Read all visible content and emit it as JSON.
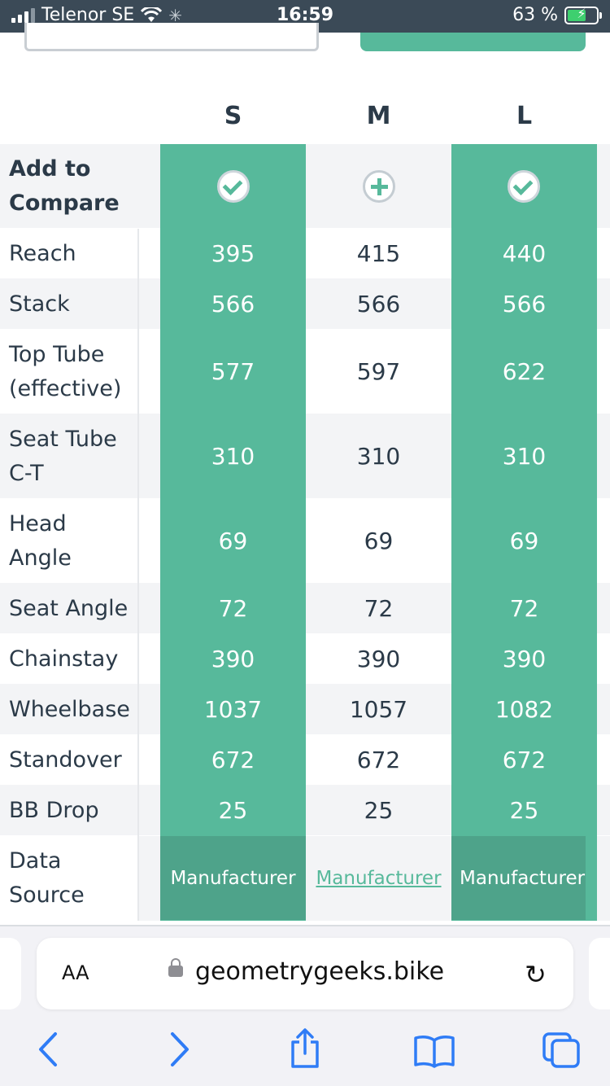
{
  "status_bar": {
    "carrier": "Telenor SE",
    "time": "16:59",
    "battery_percent": "63 %"
  },
  "table": {
    "sizes": [
      "S",
      "M",
      "L"
    ],
    "compare_label": "Add to Compare",
    "compare_states": [
      "selected",
      "add",
      "selected"
    ],
    "rows": [
      {
        "label": "Reach",
        "values": [
          "395",
          "415",
          "440"
        ]
      },
      {
        "label": "Stack",
        "values": [
          "566",
          "566",
          "566"
        ]
      },
      {
        "label": "Top Tube (effective)",
        "values": [
          "577",
          "597",
          "622"
        ]
      },
      {
        "label": "Seat Tube C-T",
        "values": [
          "310",
          "310",
          "310"
        ]
      },
      {
        "label": "Head Angle",
        "values": [
          "69",
          "69",
          "69"
        ]
      },
      {
        "label": "Seat Angle",
        "values": [
          "72",
          "72",
          "72"
        ]
      },
      {
        "label": "Chainstay",
        "values": [
          "390",
          "390",
          "390"
        ]
      },
      {
        "label": "Wheelbase",
        "values": [
          "1037",
          "1057",
          "1082"
        ]
      },
      {
        "label": "Standover",
        "values": [
          "672",
          "672",
          "672"
        ]
      },
      {
        "label": "BB Drop",
        "values": [
          "25",
          "25",
          "25"
        ]
      }
    ],
    "source_label": "Data Source",
    "source_values": [
      "Manufacturer",
      "Manufacturer",
      "Manufacturer"
    ]
  },
  "browser": {
    "text_size_label": "AA",
    "url": "geometrygeeks.bike",
    "accent_color": "#2f7cf6"
  },
  "colors": {
    "green": "#57b99b",
    "green_dark": "#4ea38a",
    "text": "#2b3a48"
  }
}
